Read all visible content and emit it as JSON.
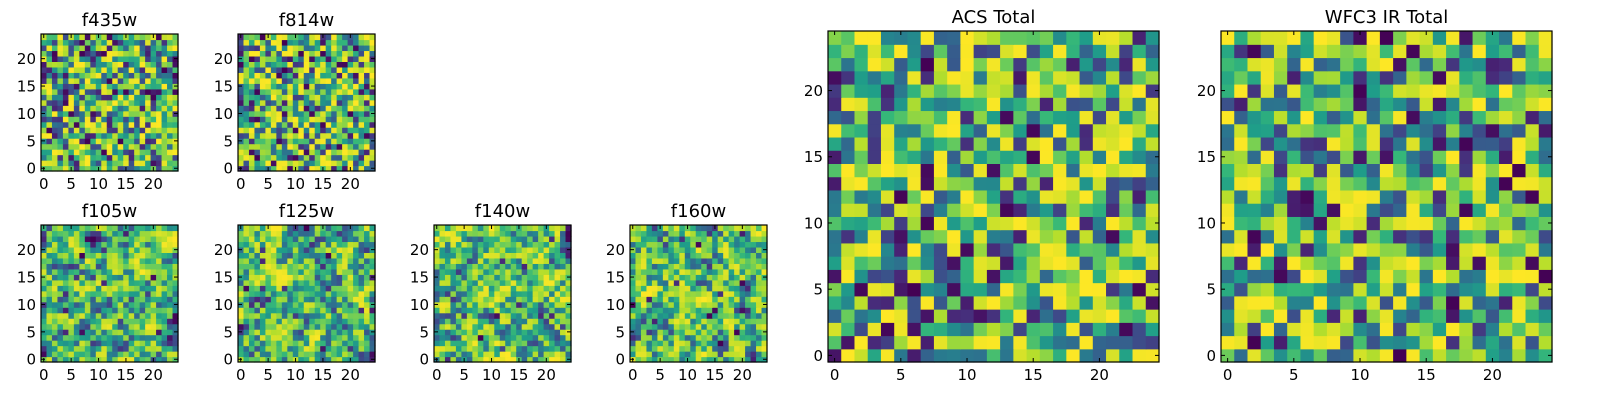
{
  "figure": {
    "background": "#ffffff",
    "colormap": "viridis"
  },
  "chart_data": [
    {
      "id": "f435w",
      "type": "heatmap",
      "title": "f435w",
      "grid_size": 25,
      "seed": 11,
      "style": "noise",
      "xticks": [
        "0",
        "5",
        "10",
        "15",
        "20"
      ],
      "yticks": [
        "0",
        "5",
        "10",
        "15",
        "20"
      ],
      "xlim": [
        -0.5,
        24.5
      ],
      "ylim": [
        -0.5,
        24.5
      ],
      "grid": false,
      "xlabel": "",
      "ylabel": ""
    },
    {
      "id": "f814w",
      "type": "heatmap",
      "title": "f814w",
      "grid_size": 25,
      "seed": 23,
      "style": "noise",
      "xticks": [
        "0",
        "5",
        "10",
        "15",
        "20"
      ],
      "yticks": [
        "0",
        "5",
        "10",
        "15",
        "20"
      ],
      "xlim": [
        -0.5,
        24.5
      ],
      "ylim": [
        -0.5,
        24.5
      ],
      "grid": false,
      "xlabel": "",
      "ylabel": ""
    },
    {
      "id": "f105w",
      "type": "heatmap",
      "title": "f105w",
      "grid_size": 25,
      "seed": 37,
      "style": "smooth",
      "xticks": [
        "0",
        "5",
        "10",
        "15",
        "20"
      ],
      "yticks": [
        "0",
        "5",
        "10",
        "15",
        "20"
      ],
      "xlim": [
        -0.5,
        24.5
      ],
      "ylim": [
        -0.5,
        24.5
      ],
      "grid": false,
      "xlabel": "",
      "ylabel": ""
    },
    {
      "id": "f125w",
      "type": "heatmap",
      "title": "f125w",
      "grid_size": 25,
      "seed": 41,
      "style": "smooth",
      "xticks": [
        "0",
        "5",
        "10",
        "15",
        "20"
      ],
      "yticks": [
        "0",
        "5",
        "10",
        "15",
        "20"
      ],
      "xlim": [
        -0.5,
        24.5
      ],
      "ylim": [
        -0.5,
        24.5
      ],
      "grid": false,
      "xlabel": "",
      "ylabel": ""
    },
    {
      "id": "f140w",
      "type": "heatmap",
      "title": "f140w",
      "grid_size": 25,
      "seed": 53,
      "style": "smooth",
      "xticks": [
        "0",
        "5",
        "10",
        "15",
        "20"
      ],
      "yticks": [
        "0",
        "5",
        "10",
        "15",
        "20"
      ],
      "xlim": [
        -0.5,
        24.5
      ],
      "ylim": [
        -0.5,
        24.5
      ],
      "grid": false,
      "xlabel": "",
      "ylabel": ""
    },
    {
      "id": "f160w",
      "type": "heatmap",
      "title": "f160w",
      "grid_size": 25,
      "seed": 67,
      "style": "smooth",
      "xticks": [
        "0",
        "5",
        "10",
        "15",
        "20"
      ],
      "yticks": [
        "0",
        "5",
        "10",
        "15",
        "20"
      ],
      "xlim": [
        -0.5,
        24.5
      ],
      "ylim": [
        -0.5,
        24.5
      ],
      "grid": false,
      "xlabel": "",
      "ylabel": ""
    },
    {
      "id": "acs-total",
      "type": "heatmap",
      "title": "ACS Total",
      "grid_size": 25,
      "seed": 79,
      "style": "noise",
      "xticks": [
        "0",
        "5",
        "10",
        "15",
        "20"
      ],
      "yticks": [
        "0",
        "5",
        "10",
        "15",
        "20"
      ],
      "xlim": [
        -0.5,
        24.5
      ],
      "ylim": [
        -0.5,
        24.5
      ],
      "grid": false,
      "xlabel": "",
      "ylabel": ""
    },
    {
      "id": "wfc3-ir-total",
      "type": "heatmap",
      "title": "WFC3 IR Total",
      "grid_size": 25,
      "seed": 97,
      "style": "noise",
      "xticks": [
        "0",
        "5",
        "10",
        "15",
        "20"
      ],
      "yticks": [
        "0",
        "5",
        "10",
        "15",
        "20"
      ],
      "xlim": [
        -0.5,
        24.5
      ],
      "ylim": [
        -0.5,
        24.5
      ],
      "grid": false,
      "xlabel": "",
      "ylabel": ""
    }
  ]
}
